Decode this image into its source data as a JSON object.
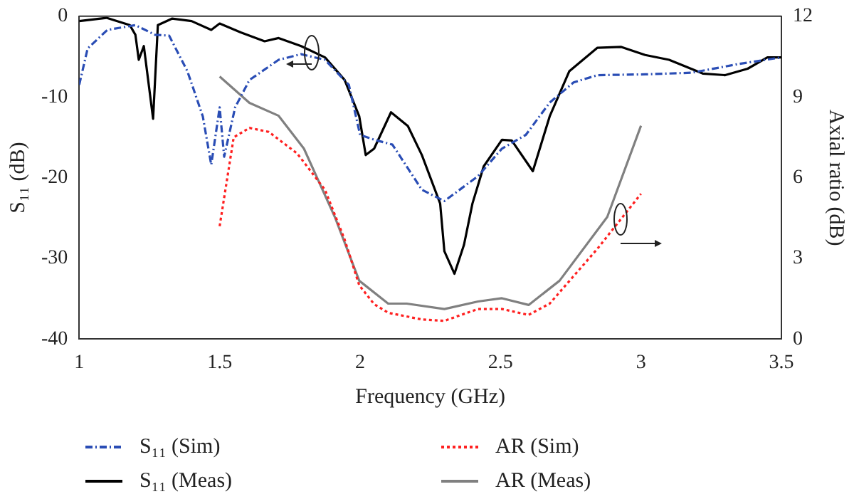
{
  "chart_data": {
    "type": "line",
    "xlabel": "Frequency (GHz)",
    "ylabel": "S₁₁ (dB)",
    "y2label": "Axial ratio (dB)",
    "xlim": [
      1,
      3.5
    ],
    "xticks": [
      1,
      1.5,
      2,
      2.5,
      3,
      3.5
    ],
    "ylim": [
      -40,
      0
    ],
    "yticks": [
      -40,
      -30,
      -20,
      -10,
      0
    ],
    "y2lim": [
      0,
      12
    ],
    "y2ticks": [
      0,
      3,
      6,
      9,
      12
    ],
    "grid": false,
    "legend": "bottom",
    "marker": "none",
    "series": [
      {
        "name": "S₁₁ (Sim)",
        "color": "#2a4db5",
        "line_style": "dashed",
        "x": [
          1.0,
          1.03,
          1.1,
          1.2,
          1.27,
          1.32,
          1.385,
          1.44,
          1.47,
          1.5,
          1.516,
          1.555,
          1.606,
          1.71,
          1.79,
          1.875,
          1.96,
          2.0,
          2.05,
          2.115,
          2.22,
          2.3,
          2.42,
          2.505,
          2.59,
          2.675,
          2.76,
          2.845,
          3.015,
          3.18,
          3.35,
          3.5
        ],
        "values": [
          -8.5,
          -4,
          -1.7,
          -1.1,
          -2.3,
          -2.4,
          -6.8,
          -12.4,
          -18.4,
          -11.3,
          -17.4,
          -11.3,
          -7.9,
          -5.4,
          -4.7,
          -5.4,
          -8.5,
          -14.7,
          -15.3,
          -15.9,
          -21.5,
          -22.9,
          -19.8,
          -16.4,
          -14.7,
          -10.7,
          -8.2,
          -7.3,
          -7.2,
          -7.0,
          -5.9,
          -5.1
        ]
      },
      {
        "name": "S₁₁ (Meas)",
        "color": "#000000",
        "line_style": "solid",
        "x": [
          1.0,
          1.097,
          1.18,
          1.2,
          1.212,
          1.23,
          1.263,
          1.28,
          1.33,
          1.4,
          1.47,
          1.5,
          1.575,
          1.66,
          1.71,
          1.79,
          1.875,
          1.945,
          1.997,
          2.02,
          2.05,
          2.11,
          2.17,
          2.22,
          2.285,
          2.3,
          2.336,
          2.37,
          2.4,
          2.44,
          2.505,
          2.54,
          2.615,
          2.675,
          2.745,
          2.845,
          2.93,
          3.015,
          3.1,
          3.22,
          3.3,
          3.38,
          3.45,
          3.5
        ],
        "values": [
          -0.6,
          -0.2,
          -1.1,
          -2.3,
          -5.4,
          -3.7,
          -12.7,
          -1.1,
          -0.3,
          -0.6,
          -1.7,
          -0.9,
          -2.0,
          -3.1,
          -2.7,
          -3.7,
          -5.1,
          -7.9,
          -12.4,
          -17.2,
          -16.4,
          -11.9,
          -13.6,
          -17.2,
          -23.2,
          -29.1,
          -31.9,
          -28.3,
          -23.2,
          -18.6,
          -15.3,
          -15.4,
          -19.2,
          -12.4,
          -6.8,
          -3.9,
          -3.8,
          -4.8,
          -5.4,
          -7.1,
          -7.3,
          -6.5,
          -5.1,
          -5.1
        ]
      },
      {
        "name": "AR (Sim)",
        "color": "#ff2020",
        "line_style": "dotted",
        "axis": "y2",
        "x": [
          1.5,
          1.55,
          1.606,
          1.675,
          1.776,
          1.875,
          1.945,
          1.997,
          2.05,
          2.1,
          2.22,
          2.3,
          2.42,
          2.505,
          2.6,
          2.675,
          2.845,
          3.0
        ],
        "values": [
          4.2,
          7.5,
          7.85,
          7.7,
          6.9,
          5.55,
          3.7,
          2.0,
          1.3,
          0.98,
          0.73,
          0.68,
          1.12,
          1.12,
          0.9,
          1.32,
          3.36,
          5.4
        ]
      },
      {
        "name": "AR (Meas)",
        "color": "#808080",
        "line_style": "solid",
        "axis": "y2",
        "x": [
          1.5,
          1.606,
          1.71,
          1.8,
          1.91,
          1.997,
          2.1,
          2.166,
          2.3,
          2.42,
          2.505,
          2.6,
          2.71,
          2.88,
          3.0
        ],
        "values": [
          9.76,
          8.78,
          8.3,
          7.08,
          4.54,
          2.17,
          1.32,
          1.32,
          1.12,
          1.4,
          1.52,
          1.27,
          2.17,
          4.54,
          7.93
        ]
      }
    ]
  }
}
